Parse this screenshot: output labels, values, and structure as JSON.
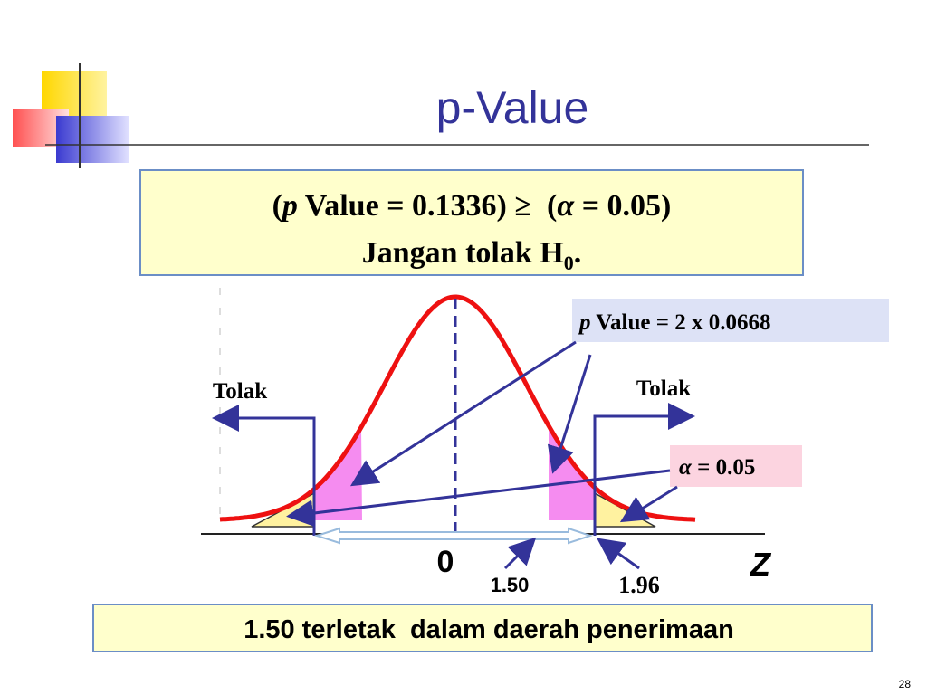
{
  "title": "p-Value",
  "decision": {
    "line1": [
      "(",
      "p",
      " Value = 0.1336) ≥  (",
      "α",
      " = 0.05)"
    ],
    "line2": [
      "Jangan tolak H",
      "0",
      "."
    ]
  },
  "p_value_label": [
    "p",
    " Value = 2 x 0.0668"
  ],
  "reject_left": "Tolak",
  "reject_right": "Tolak",
  "alpha_label": [
    "α",
    " = 0.05"
  ],
  "axis": {
    "origin": "0",
    "variable": "Z"
  },
  "test_statistic": "1.50",
  "critical_value": "1.96",
  "conclusion": "1.50 terletak  dalam daerah penerimaan",
  "page_number": "28"
}
